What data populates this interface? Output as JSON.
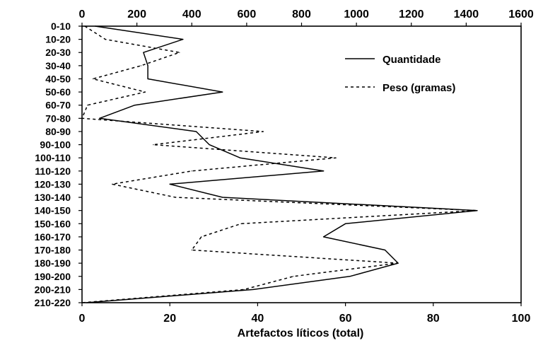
{
  "chart_data": {
    "type": "line",
    "orientation": "vertical-profile",
    "categories": [
      "0-10",
      "10-20",
      "20-30",
      "30-40",
      "40-50",
      "50-60",
      "60-70",
      "70-80",
      "80-90",
      "90-100",
      "100-110",
      "110-120",
      "120-130",
      "130-140",
      "140-150",
      "150-160",
      "160-170",
      "170-180",
      "180-190",
      "190-200",
      "200-210",
      "210-220"
    ],
    "xlabel_bottom": "Artefactos líticos (total)",
    "bottom_axis": {
      "range": [
        0,
        100
      ],
      "ticks": [
        0,
        20,
        40,
        60,
        80,
        100
      ]
    },
    "top_axis": {
      "range": [
        0,
        1600
      ],
      "ticks": [
        0,
        200,
        400,
        600,
        800,
        1000,
        1200,
        1400,
        1600
      ]
    },
    "legend_position": "top-right",
    "series": [
      {
        "name": "Quantidade",
        "axis": "bottom",
        "style": "solid",
        "values": [
          3,
          23,
          14,
          15,
          15,
          32,
          12,
          4,
          26,
          29,
          36,
          55,
          20,
          32,
          90,
          60,
          55,
          69,
          72,
          61,
          39,
          1
        ]
      },
      {
        "name": "Peso (gramas)",
        "axis": "top",
        "style": "dashed",
        "values": [
          10,
          85,
          355,
          215,
          40,
          230,
          20,
          0,
          660,
          260,
          925,
          400,
          110,
          340,
          1440,
          580,
          435,
          400,
          1150,
          770,
          590,
          0
        ]
      }
    ]
  }
}
